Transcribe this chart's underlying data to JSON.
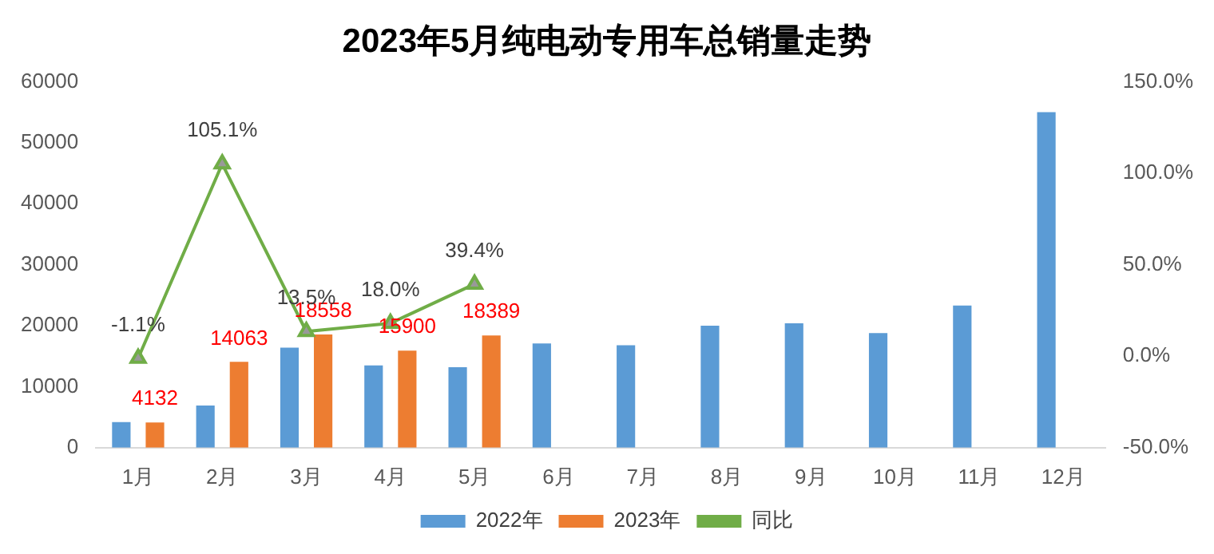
{
  "chart_data": {
    "type": "bar",
    "title": "2023年5月纯电动专用车总销量走势",
    "categories": [
      "1月",
      "2月",
      "3月",
      "4月",
      "5月",
      "6月",
      "7月",
      "8月",
      "9月",
      "10月",
      "11月",
      "12月"
    ],
    "series": [
      {
        "name": "2022年",
        "color": "#5b9bd5",
        "values": [
          4200,
          6900,
          16400,
          13500,
          13200,
          17100,
          16800,
          20000,
          20400,
          18800,
          23300,
          55000
        ]
      },
      {
        "name": "2023年",
        "color": "#ed7d31",
        "values": [
          4132,
          14063,
          18558,
          15900,
          18389,
          null,
          null,
          null,
          null,
          null,
          null,
          null
        ],
        "value_labels": [
          "4132",
          "14063",
          "18558",
          "15900",
          "18389",
          null,
          null,
          null,
          null,
          null,
          null,
          null
        ]
      },
      {
        "name": "同比",
        "type": "line",
        "axis": "y2",
        "color": "#70ad47",
        "marker": "triangle",
        "values": [
          -1.1,
          105.1,
          13.5,
          18.0,
          39.4,
          null,
          null,
          null,
          null,
          null,
          null,
          null
        ],
        "value_labels": [
          "-1.1%",
          "105.1%",
          "13.5%",
          "18.0%",
          "39.4%",
          null,
          null,
          null,
          null,
          null,
          null,
          null
        ]
      }
    ],
    "ylim": [
      0,
      60000
    ],
    "yticks": [
      0,
      10000,
      20000,
      30000,
      40000,
      50000,
      60000
    ],
    "y2lim": [
      -50,
      150
    ],
    "y2ticks": [
      {
        "value": -50,
        "label": "-50.0%"
      },
      {
        "value": 0,
        "label": "0.0%"
      },
      {
        "value": 50,
        "label": "50.0%"
      },
      {
        "value": 100,
        "label": "100.0%"
      },
      {
        "value": 150,
        "label": "150.0%"
      }
    ],
    "grid": false,
    "legend": "bottom"
  }
}
